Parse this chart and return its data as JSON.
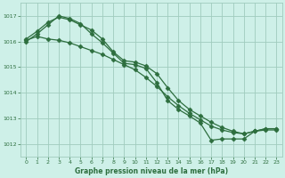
{
  "bg_color": "#cef0e8",
  "grid_color": "#a0ccbe",
  "line_color": "#2d6e3e",
  "marker_color": "#2d6e3e",
  "xlabel": "Graphe pression niveau de la mer (hPa)",
  "xlabel_color": "#2d6e3e",
  "ylabel_color": "#2d6e3e",
  "xlim": [
    -0.5,
    23.5
  ],
  "ylim": [
    1011.5,
    1017.5
  ],
  "yticks": [
    1012,
    1013,
    1014,
    1015,
    1016,
    1017
  ],
  "xticks": [
    0,
    1,
    2,
    3,
    4,
    5,
    6,
    7,
    8,
    9,
    10,
    11,
    12,
    13,
    14,
    15,
    16,
    17,
    18,
    19,
    20,
    21,
    22,
    23
  ],
  "series1": {
    "x": [
      0,
      1,
      2,
      3,
      4,
      5,
      6,
      7,
      8,
      9,
      10,
      11,
      12,
      13,
      14,
      15,
      16,
      17,
      18,
      19,
      20,
      21,
      22,
      23
    ],
    "y": [
      1016.05,
      1016.2,
      1016.1,
      1016.05,
      1015.95,
      1015.8,
      1015.65,
      1015.5,
      1015.3,
      1015.1,
      1014.9,
      1014.6,
      1014.25,
      1013.85,
      1013.5,
      1013.2,
      1012.95,
      1012.7,
      1012.55,
      1012.45,
      1012.4,
      1012.5,
      1012.55,
      1012.55
    ]
  },
  "series2": {
    "x": [
      0,
      1,
      2,
      3,
      4,
      5,
      6,
      7,
      8,
      9,
      10,
      11,
      12,
      13,
      14,
      15,
      16,
      17,
      18,
      19,
      20,
      21,
      22,
      23
    ],
    "y": [
      1016.1,
      1016.4,
      1016.75,
      1016.95,
      1016.85,
      1016.65,
      1016.45,
      1016.1,
      1015.6,
      1015.25,
      1015.2,
      1015.05,
      1014.75,
      1014.2,
      1013.7,
      1013.35,
      1013.1,
      1012.85,
      1012.65,
      1012.5,
      1012.4,
      1012.5,
      1012.6,
      1012.6
    ]
  },
  "series3": {
    "x": [
      0,
      1,
      2,
      3,
      4,
      5,
      6,
      7,
      8,
      9,
      10,
      11,
      12,
      13,
      14,
      15,
      16,
      17,
      18,
      19,
      20,
      21,
      22,
      23
    ],
    "y": [
      1016.0,
      1016.3,
      1016.65,
      1017.0,
      1016.9,
      1016.7,
      1016.3,
      1015.95,
      1015.55,
      1015.15,
      1015.1,
      1014.95,
      1014.4,
      1013.7,
      1013.35,
      1013.1,
      1012.82,
      1012.15,
      1012.2,
      1012.2,
      1012.2,
      1012.5,
      1012.6,
      1012.6
    ]
  }
}
